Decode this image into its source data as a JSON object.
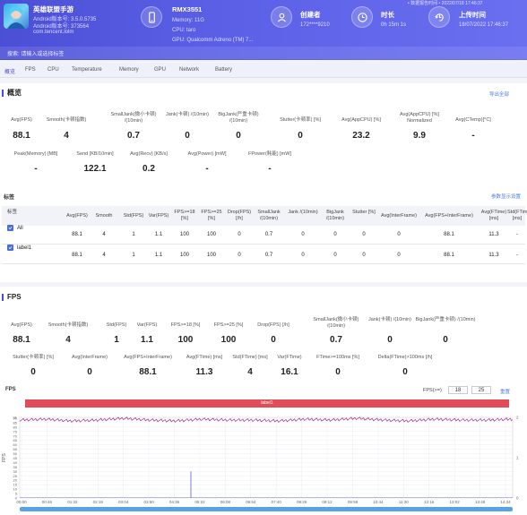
{
  "header": {
    "app_name": "英雄联盟手游",
    "android_version": "Android版本号: 3.5.0.5735",
    "android_code": "Android版本号: 373564",
    "package": "com.tencent.lolm",
    "device_name": "RMX3551",
    "memory": "Memory: 11G",
    "cpu": "CPU: taro",
    "gpu": "GPU: Qualcomm Adreno (TM) 7...",
    "creator_label": "创建者",
    "creator_value": "172****9210",
    "duration_label": "时长",
    "duration_value": "0h 15m 1s",
    "upload_label": "上传时间",
    "upload_value": "18/07/2022 17:46:37",
    "top_right_note": "• 数据报告时间 • 2022/07/18 17:46:37"
  },
  "search": {
    "placeholder": "搜索: 请输入或选择标签"
  },
  "tabs": [
    "概览",
    "FPS",
    "CPU",
    "Temperature",
    "Memory",
    "GPU",
    "Network",
    "Battery"
  ],
  "overview": {
    "title": "概览",
    "export_label": "导出全部",
    "row1": [
      {
        "label": "Avg(FPS)",
        "value": "88.1"
      },
      {
        "label": "Smooth(卡顿指数)",
        "value": "4"
      },
      {
        "label": "SmallJank(微小卡顿) /(10min)",
        "value": "0.7"
      },
      {
        "label": "Jank(卡顿) /(10min)",
        "value": "0"
      },
      {
        "label": "BigJank(严重卡顿) /(10min)",
        "value": "0"
      },
      {
        "label": "Stutter(卡顿率) [%]",
        "value": "0"
      },
      {
        "label": "Avg(AppCPU) [%]",
        "value": "23.2"
      },
      {
        "label": "Avg(AppCPU) [%] Normalized",
        "value": "9.9"
      },
      {
        "label": "Avg(CTemp)[°C]",
        "value": "-"
      }
    ],
    "row2": [
      {
        "label": "Peak(Memory) [MB]",
        "value": "-"
      },
      {
        "label": "Send [KB/10min]",
        "value": "122.1"
      },
      {
        "label": "Avg(Recv) [KB/s]",
        "value": "0.2"
      },
      {
        "label": "Avg(Power) [mW]",
        "value": "-"
      },
      {
        "label": "FPower(耗能) [mW]",
        "value": "-"
      }
    ]
  },
  "labels_table": {
    "title": "标签",
    "link": "参数显示设置",
    "headers": [
      "标签",
      "Avg(FPS)",
      "Smooth",
      "Std(FPS)",
      "Var(FPS)",
      "FPS>=18 [%]",
      "FPS>=25 [%]",
      "Drop(FPS) [/h]",
      "SmallJank /(10min)",
      "Jank /(10min)",
      "BigJank /(10min)",
      "Stutter [%]",
      "Avg(InterFrame)",
      "Avg(FPS+InterFrame)",
      "Avg(FTime) [ms]",
      "Std(FTime) [ms]"
    ],
    "rows": [
      {
        "name": "All",
        "cells": [
          "88.1",
          "4",
          "1",
          "1.1",
          "100",
          "100",
          "0",
          "0.7",
          "0",
          "0",
          "0",
          "0",
          "88.1",
          "11.3",
          "-"
        ]
      },
      {
        "name": "label1",
        "cells": [
          "88.1",
          "4",
          "1",
          "1.1",
          "100",
          "100",
          "0",
          "0.7",
          "0",
          "0",
          "0",
          "0",
          "88.1",
          "11.3",
          "-"
        ]
      }
    ]
  },
  "fps_section": {
    "title": "FPS",
    "row1": [
      {
        "label": "Avg(FPS)",
        "value": "88.1"
      },
      {
        "label": "Smooth(卡顿指数)",
        "value": "4"
      },
      {
        "label": "Std(FPS)",
        "value": "1"
      },
      {
        "label": "Var(FPS)",
        "value": "1.1"
      },
      {
        "label": "FPS>=18 [%]",
        "value": "100"
      },
      {
        "label": "FPS>=25 [%]",
        "value": "100"
      },
      {
        "label": "Drop(FPS) [/h]",
        "value": "0"
      },
      {
        "label": "SmallJank(微小卡顿) /(10min)",
        "value": "0.7"
      },
      {
        "label": "Jank(卡顿) /(10min)",
        "value": "0"
      },
      {
        "label": "BigJank(严重卡顿) /(10min)",
        "value": "0"
      }
    ],
    "row2": [
      {
        "label": "Stutter(卡顿率) [%]",
        "value": "0"
      },
      {
        "label": "Avg(InterFrame)",
        "value": "0"
      },
      {
        "label": "Avg(FPS+InterFrame)",
        "value": "88.1"
      },
      {
        "label": "Avg(FTime) [ms]",
        "value": "11.3"
      },
      {
        "label": "Std(FTime) [ms]",
        "value": "4"
      },
      {
        "label": "Var(FTime)",
        "value": "16.1"
      },
      {
        "label": "FTime>=100ms [%]",
        "value": "0"
      },
      {
        "label": "Delta(FTime)>100ms [/h]",
        "value": "0"
      }
    ]
  },
  "fps_chart_controls": {
    "chart_label": "FPS",
    "threshold_label": "FPS(>=)",
    "threshold_a": "18",
    "threshold_b": "25",
    "reset_label": "重置",
    "legend_label": "label1"
  },
  "chart_data": {
    "type": "line",
    "xlabel": "",
    "ylabel": "FPS",
    "x_ticks": [
      "00:00",
      "00:46",
      "01:32",
      "02:19",
      "03:04",
      "03:50",
      "04:36",
      "05:22",
      "06:08",
      "06:54",
      "07:40",
      "08:26",
      "09:12",
      "09:58",
      "10:44",
      "11:30",
      "12:16",
      "13:02",
      "13:48",
      "14:34"
    ],
    "y_ticks": [
      0,
      5,
      10,
      15,
      20,
      25,
      30,
      35,
      40,
      45,
      50,
      55,
      60,
      65,
      70,
      75,
      80,
      85,
      90,
      91
    ],
    "ylim": [
      0,
      91
    ],
    "right_y_ticks": [
      "0",
      "1",
      "2"
    ],
    "series": [
      {
        "color": "#9b2c8f",
        "values_summary": [
          88,
          89,
          87,
          88,
          90,
          88,
          87,
          89,
          88,
          88,
          87,
          89,
          88,
          90,
          88,
          87,
          89,
          88,
          88,
          89
        ]
      },
      {
        "color": "#7a7de0",
        "spike_at_time": "05:06",
        "spike_value": 30
      }
    ],
    "grid": true
  }
}
